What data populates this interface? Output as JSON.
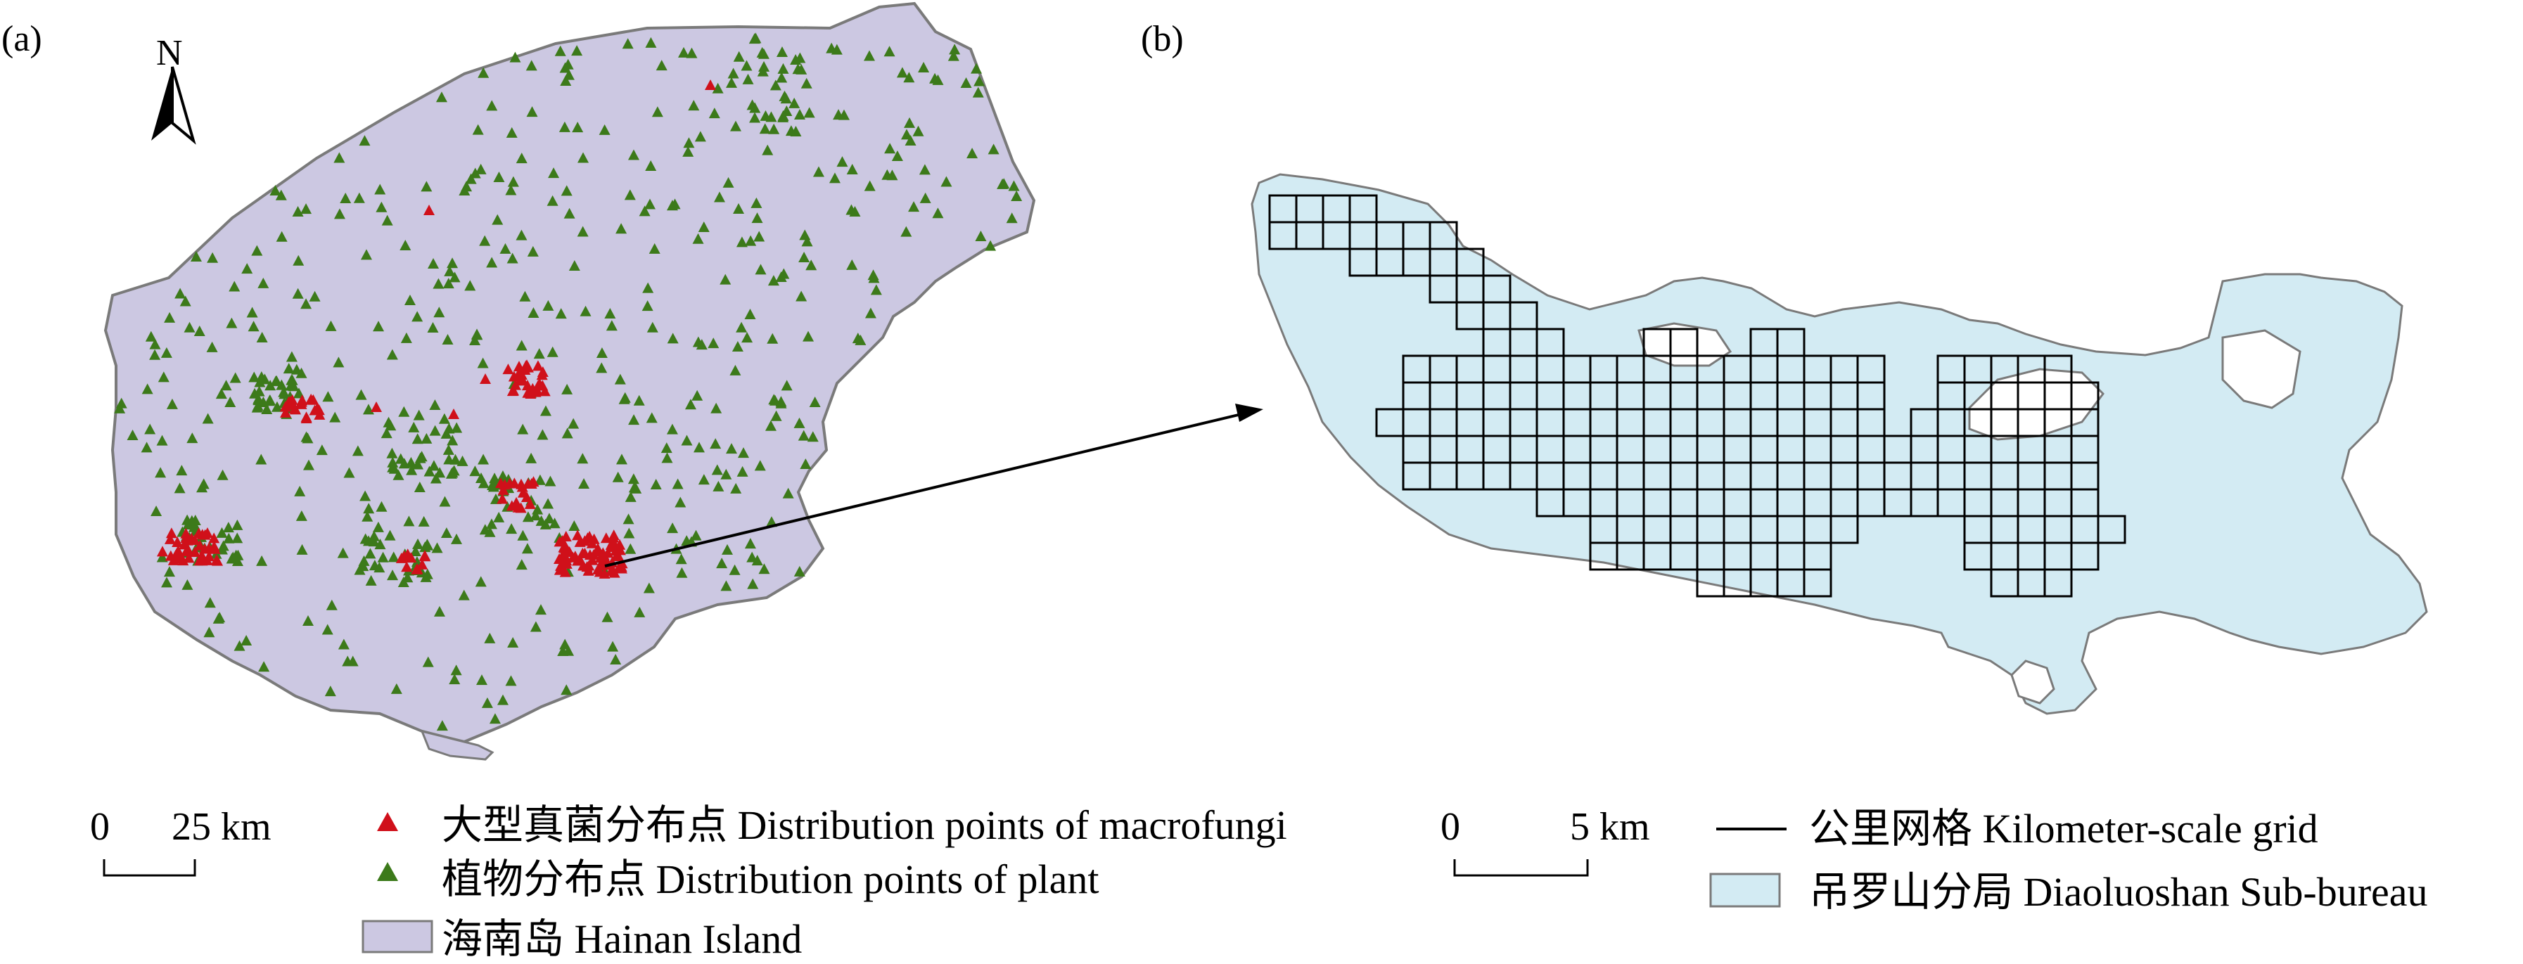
{
  "panel_a": {
    "label": "(a)",
    "north": "N"
  },
  "panel_b": {
    "label": "(b)"
  },
  "scale_a": {
    "zero": "0",
    "distance": "25 km"
  },
  "scale_b": {
    "zero": "0",
    "distance": "5 km"
  },
  "legend": {
    "macrofungi": "大型真菌分布点 Distribution points of macrofungi",
    "plant": "植物分布点 Distribution points of plant",
    "island": "海南岛 Hainan Island",
    "grid": "公里网格 Kilometer-scale grid",
    "subbureau": "吊罗山分局 Diaoluoshan Sub-bureau"
  },
  "colors": {
    "island_fill": "#ccc8e2",
    "subbureau_fill": "#d3ebf3",
    "outline": "#7a7a7a",
    "macrofungi": "#d0101a",
    "plant": "#3c7a1a",
    "grid": "#000000"
  },
  "icons": {
    "macrofungi": "red-triangle-icon",
    "plant": "green-triangle-icon",
    "north": "north-arrow-icon"
  }
}
